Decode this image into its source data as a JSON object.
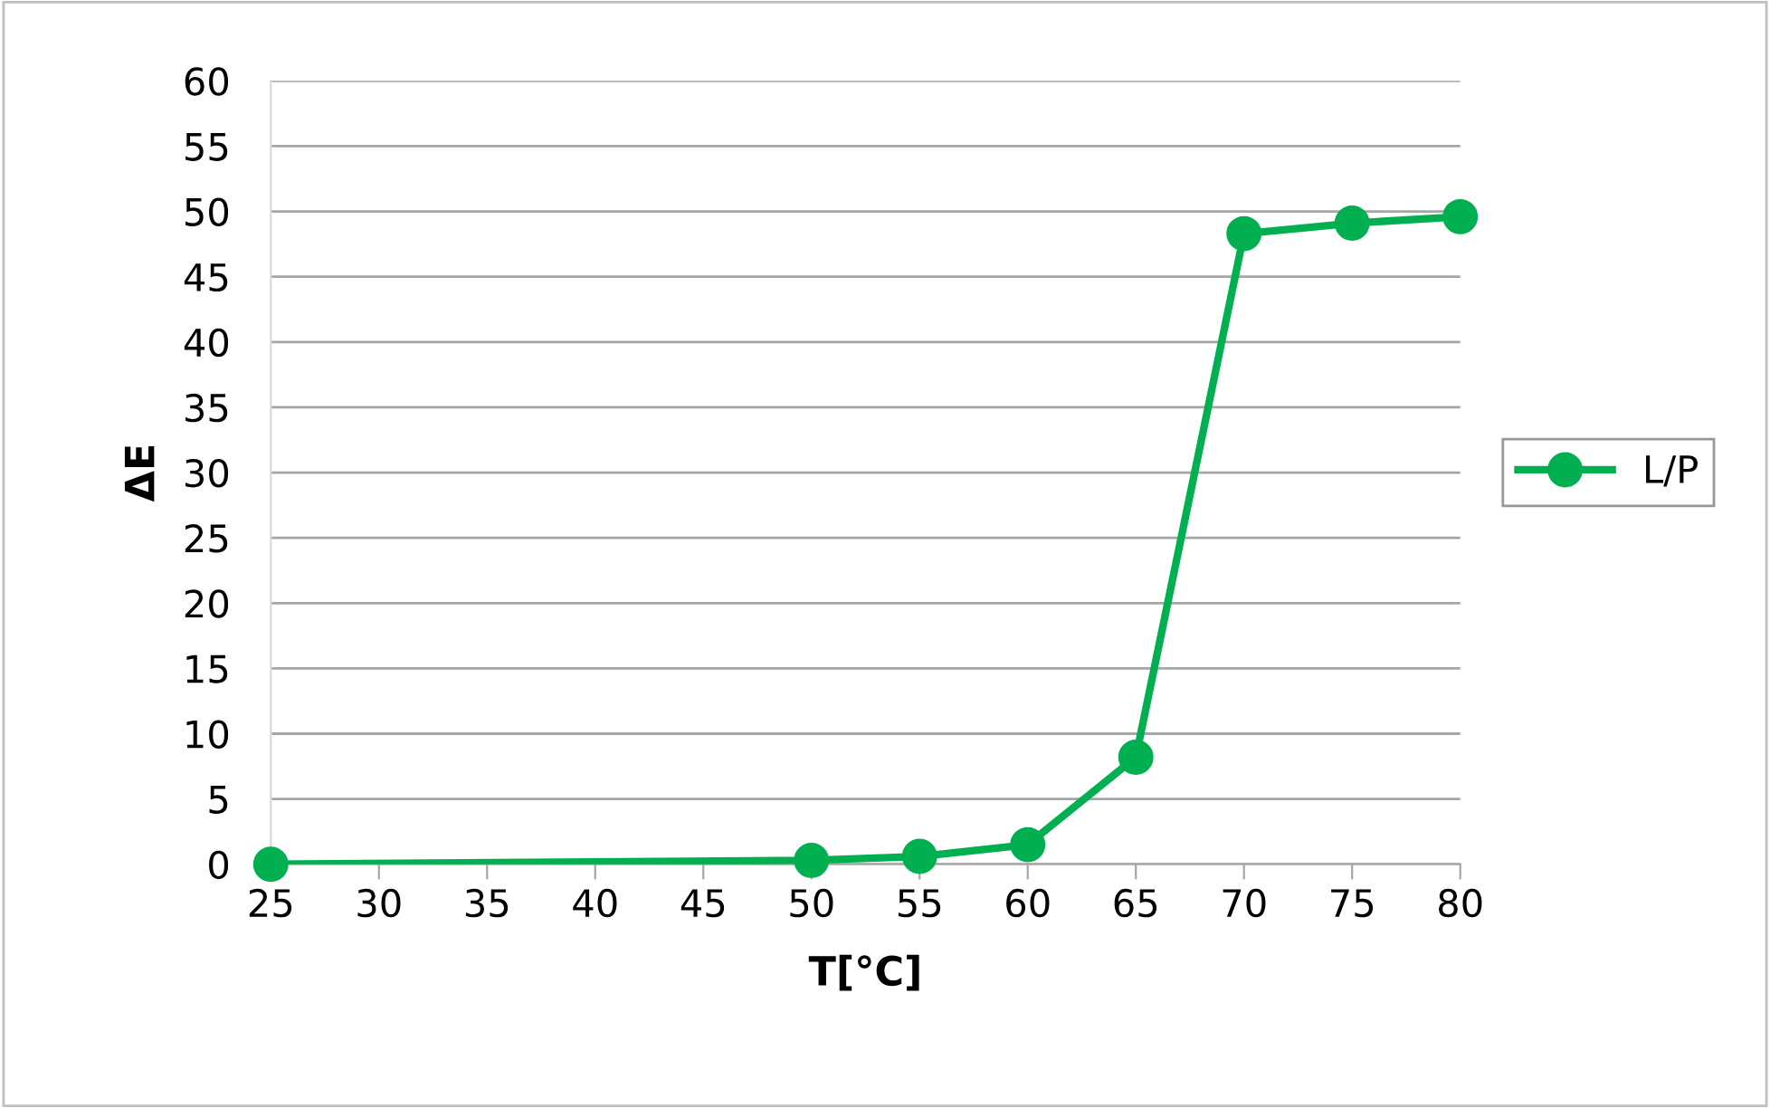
{
  "chart_data": {
    "type": "line",
    "xlabel": "T[°C]",
    "ylabel": "ΔE",
    "x": [
      25,
      50,
      55,
      60,
      65,
      70,
      75,
      80
    ],
    "series": [
      {
        "name": "L/P",
        "color": "#00b050",
        "values": [
          0,
          0.3,
          0.6,
          1.5,
          8.2,
          48.3,
          49.1,
          49.6
        ]
      }
    ],
    "xlim": [
      25,
      80
    ],
    "xticks": [
      25,
      30,
      35,
      40,
      45,
      50,
      55,
      60,
      65,
      70,
      75,
      80
    ],
    "ylim": [
      0,
      60
    ],
    "yticks": [
      0,
      5,
      10,
      15,
      20,
      25,
      30,
      35,
      40,
      45,
      50,
      55,
      60
    ],
    "grid": "y",
    "legend": "right",
    "marker": "circle",
    "line_style": "solid"
  }
}
